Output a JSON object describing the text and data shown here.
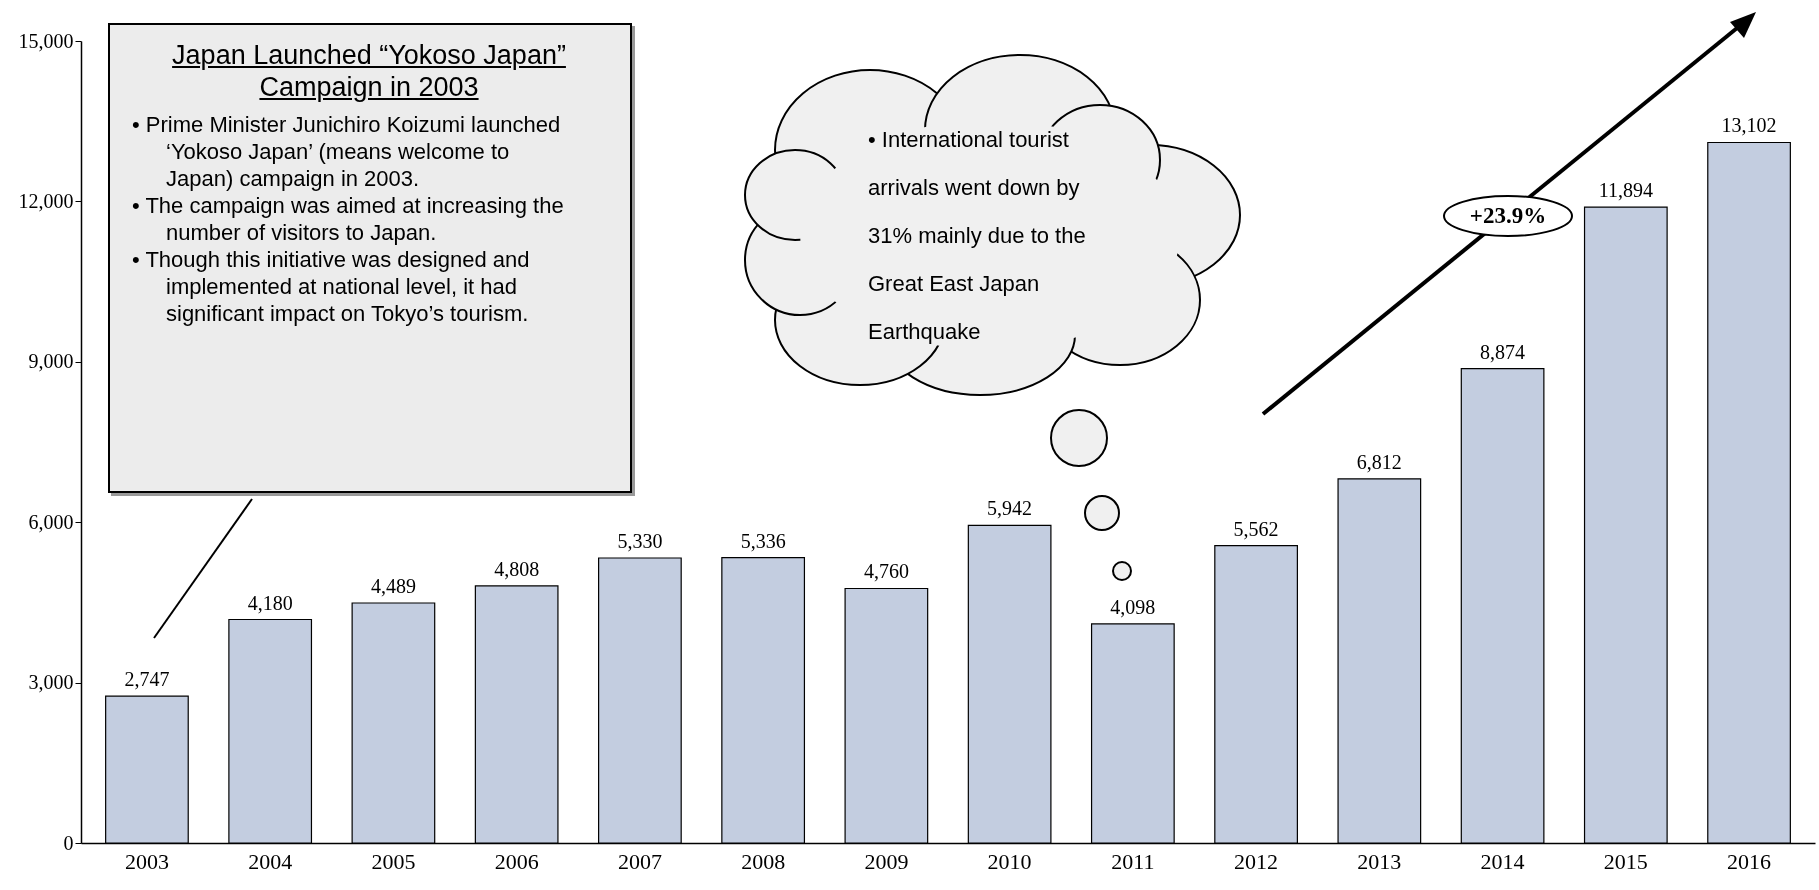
{
  "chart_data": {
    "type": "bar",
    "categories": [
      "2003",
      "2004",
      "2005",
      "2006",
      "2007",
      "2008",
      "2009",
      "2010",
      "2011",
      "2012",
      "2013",
      "2014",
      "2015",
      "2016"
    ],
    "values": [
      2747,
      4180,
      4489,
      4808,
      5330,
      5336,
      4760,
      5942,
      4098,
      5562,
      6812,
      8874,
      11894,
      13102
    ],
    "value_labels": [
      "2,747",
      "4,180",
      "4,489",
      "4,808",
      "5,330",
      "5,336",
      "4,760",
      "5,942",
      "4,098",
      "5,562",
      "6,812",
      "8,874",
      "11,894",
      "13,102"
    ],
    "color": "#c3cde0",
    "ylim": [
      0,
      15000
    ],
    "yticks": [
      0,
      {
        "value": 3000,
        "label": "3,000"
      },
      {
        "value": 6000,
        "label": "6,000"
      },
      {
        "value": 9000,
        "label": "9,000"
      },
      {
        "value": 12000,
        "label": "12,000"
      },
      {
        "value": 15000,
        "label": "15,000"
      }
    ],
    "grid": false,
    "annotations": [
      "Japan Launched “Yokoso Japan” Campaign in 2003",
      "• Prime Minister Junichiro Koizumi launched ‘Yokoso Japan’ (means welcome to Japan) campaign in 2003.",
      "• The campaign was aimed at increasing the number of visitors to Japan.",
      "• Though this initiative was designed and implemented at national level, it had significant impact on Tokyo’s tourism.",
      "• International tourist arrivals went down by 31% mainly due to the Great East Japan Earthquake",
      "+23.9%"
    ]
  }
}
